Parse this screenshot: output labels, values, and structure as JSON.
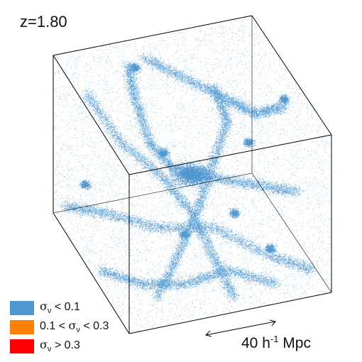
{
  "redshift_label": "z=1.80",
  "scale_bar": {
    "value": "40",
    "unit_prefix": "h",
    "unit_exponent": "-1",
    "unit": "Mpc"
  },
  "legend": [
    {
      "color": "#4f97d1",
      "symbol": "σ",
      "subscript": "ν",
      "before": "",
      "after": " < 0.1"
    },
    {
      "color": "#ff8000",
      "symbol": "σ",
      "subscript": "ν",
      "before": "0.1 < ",
      "after": " < 0.3"
    },
    {
      "color": "#ff0000",
      "symbol": "σ",
      "subscript": "ν",
      "before": "",
      "after": " > 0.3"
    }
  ],
  "colors": {
    "particles": "#4f97d1",
    "cube_edges": "#000000"
  }
}
